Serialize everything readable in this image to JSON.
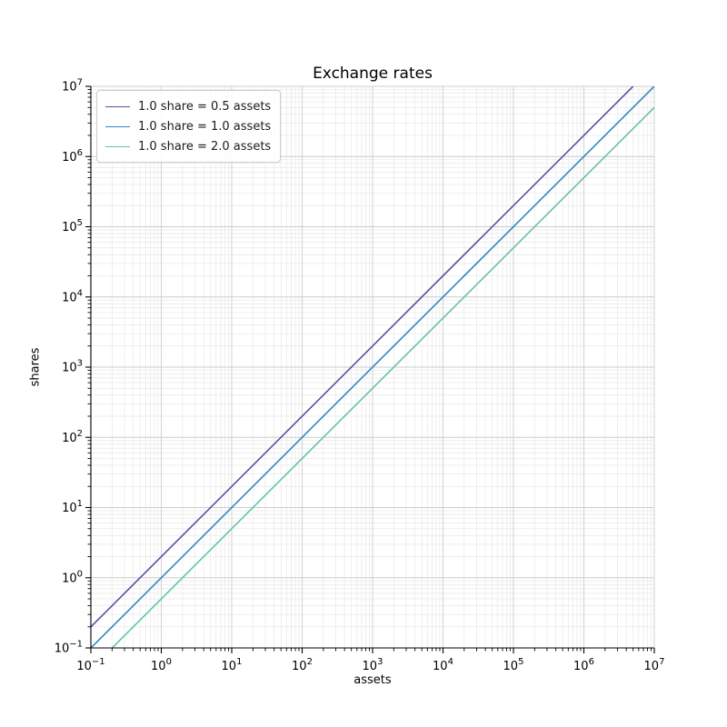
{
  "figure": {
    "background": "#ffffff"
  },
  "chart_data": {
    "type": "line",
    "title": "Exchange rates",
    "xlabel": "assets",
    "ylabel": "shares",
    "xscale": "log",
    "yscale": "log",
    "xlim": [
      0.1,
      10000000
    ],
    "ylim": [
      0.1,
      10000000
    ],
    "x_tick_exponents": [
      -1,
      0,
      1,
      2,
      3,
      4,
      5,
      6,
      7
    ],
    "y_tick_exponents": [
      -1,
      0,
      1,
      2,
      3,
      4,
      5,
      6,
      7
    ],
    "grid": {
      "major": true,
      "minor": true,
      "major_color": "#cccccc",
      "minor_color": "#e8e8e8"
    },
    "axis_color": "#000000",
    "legend_position": "upper left",
    "series": [
      {
        "name": "1.0 share = 0.5 assets",
        "color": "#5e4fa2",
        "assets_per_share": 0.5,
        "relation": "shares = assets / 0.5",
        "x": [
          0.1,
          5000000
        ],
        "y": [
          0.2,
          10000000
        ]
      },
      {
        "name": "1.0 share = 1.0 assets",
        "color": "#3288bd",
        "assets_per_share": 1.0,
        "relation": "shares = assets / 1.0",
        "x": [
          0.1,
          10000000
        ],
        "y": [
          0.1,
          10000000
        ]
      },
      {
        "name": "1.0 share = 2.0 assets",
        "color": "#66c2a5",
        "assets_per_share": 2.0,
        "relation": "shares = assets / 2.0",
        "x": [
          0.2,
          10000000
        ],
        "y": [
          0.1,
          5000000
        ]
      }
    ]
  }
}
